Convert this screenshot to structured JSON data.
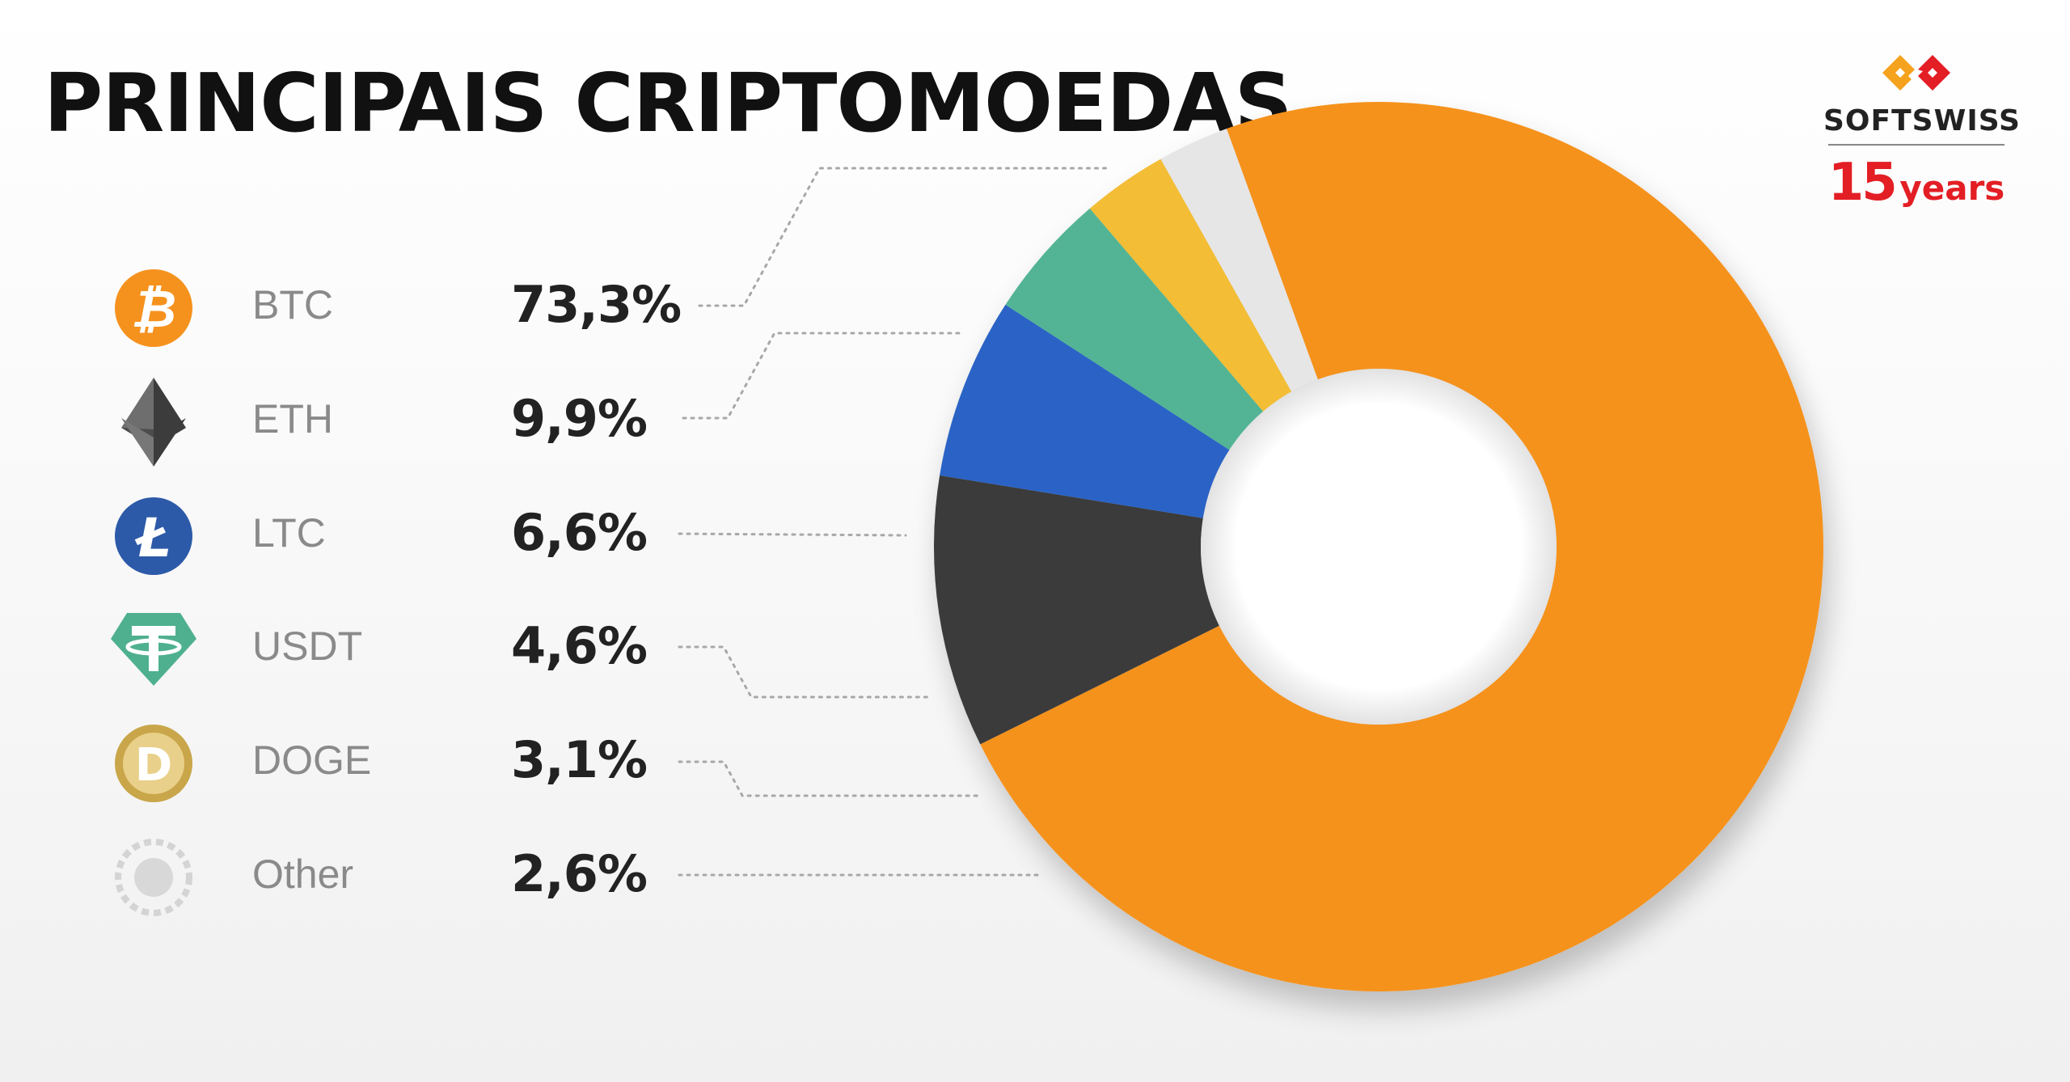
{
  "title": "PRINCIPAIS CRIPTOMOEDAS",
  "logo": {
    "brand": "SOFTSWISS",
    "years_number": "15",
    "years_text": "years"
  },
  "chart_data": {
    "type": "pie",
    "donut": true,
    "title": "PRINCIPAIS CRIPTOMOEDAS",
    "legend_position": "left",
    "categories": [
      "BTC",
      "ETH",
      "LTC",
      "USDT",
      "DOGE",
      "Other"
    ],
    "values": [
      73.3,
      9.9,
      6.6,
      4.6,
      3.1,
      2.6
    ],
    "value_labels": [
      "73,3%",
      "9,9%",
      "6,6%",
      "4,6%",
      "3,1%",
      "2,6%"
    ],
    "colors": [
      "#f5921e",
      "#3a3a3a",
      "#2b63c5",
      "#52b495",
      "#f3bd36",
      "#e6e6e6"
    ],
    "icons": [
      "bitcoin-icon",
      "ethereum-icon",
      "litecoin-icon",
      "tether-icon",
      "dogecoin-icon",
      "other-icon"
    ]
  }
}
